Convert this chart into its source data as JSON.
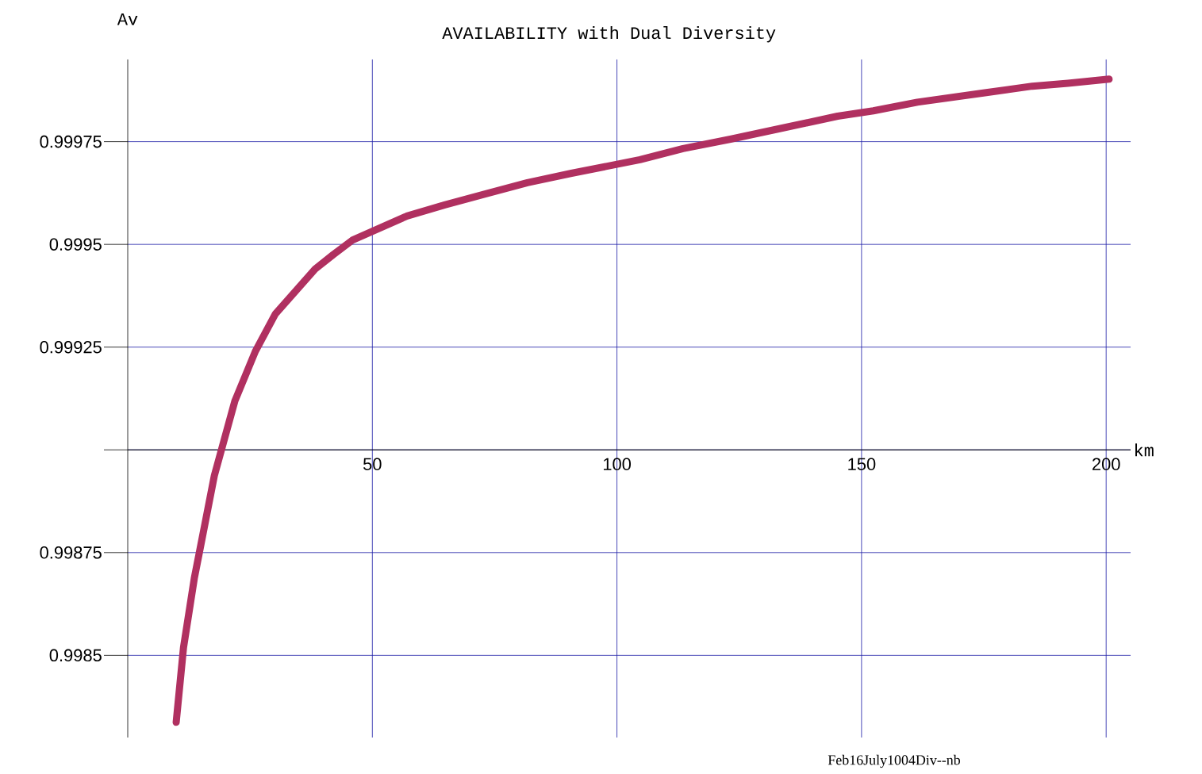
{
  "chart_data": {
    "type": "line",
    "title": "AVAILABILITY   with  Dual  Diversity",
    "xlabel": "km",
    "ylabel": "Av",
    "annotations": [
      "Feb16July1004Div--nb"
    ],
    "x": [
      9.9,
      11.4,
      13.6,
      17.7,
      21.9,
      26.1,
      30.2,
      38.3,
      42.0,
      45.9,
      57.1,
      64.8,
      73.2,
      81.7,
      90.7,
      104.7,
      113.5,
      123.2,
      133.8,
      145.1,
      152.4,
      161.4,
      175.2,
      184.9,
      192.2,
      200.6
    ],
    "values": [
      0.998337,
      0.998519,
      0.998687,
      0.998937,
      0.999119,
      0.99924,
      0.999331,
      0.99944,
      0.999475,
      0.99951,
      0.999569,
      0.999596,
      0.999623,
      0.99965,
      0.999673,
      0.999706,
      0.999733,
      0.999756,
      0.999783,
      0.999812,
      0.999825,
      0.999846,
      0.999869,
      0.999885,
      0.999892,
      0.999902
    ],
    "color": "#b03060",
    "xlim": [
      0,
      205
    ],
    "ylim": [
      0.9983,
      0.99995
    ],
    "xticks": [
      50,
      100,
      150,
      200
    ],
    "yticks": [
      0.9985,
      0.99875,
      {
        "value": 0.999,
        "label": null
      },
      0.99925,
      0.9995,
      0.99975
    ],
    "grid": true
  }
}
